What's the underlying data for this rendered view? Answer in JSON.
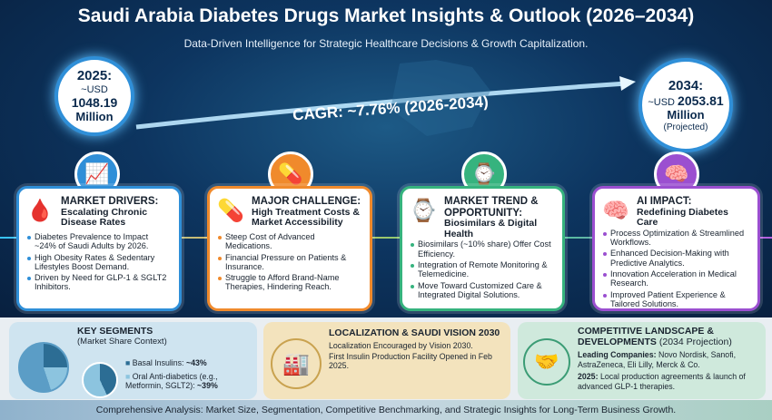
{
  "header": {
    "title": "Saudi Arabia Diabetes Drugs Market Insights & Outlook (2026–2034)",
    "subtitle": "Data-Driven Intelligence for Strategic Healthcare Decisions & Growth Capitalization."
  },
  "start": {
    "year": "2025:",
    "prefix": "~USD",
    "value": "1048.19",
    "unit": "Million"
  },
  "end": {
    "year": "2034:",
    "prefix": "~USD",
    "value": "2053.81",
    "unit": "Million",
    "note": "(Projected)"
  },
  "cagr": "CAGR: ~7.76% (2026-2034)",
  "cards": [
    {
      "title": "MARKET DRIVERS:",
      "subtitle": "Escalating Chronic Disease Rates",
      "color": "#2f8fd8",
      "icon": "glucose-meter-chart-icon",
      "bullets": [
        "Diabetes Prevalence to Impact ~24% of Saudi Adults by 2026.",
        "High Obesity Rates & Sedentary Lifestyles Boost Demand.",
        "Driven by Need for GLP-1 & SGLT2 Inhibitors."
      ]
    },
    {
      "title": "MAJOR CHALLENGE:",
      "subtitle": "High Treatment Costs & Market Accessibility",
      "color": "#f08a2c",
      "icon": "pill-bottle-icon",
      "bullets": [
        "Steep Cost of Advanced Medications.",
        "Financial Pressure on Patients & Insurance.",
        "Struggle to Afford Brand-Name Therapies, Hindering Reach."
      ]
    },
    {
      "title": "MARKET TREND & OPPORTUNITY:",
      "subtitle": "Biosimilars & Digital Health",
      "color": "#36b37e",
      "icon": "smartwatch-cloud-icon",
      "bullets": [
        "Biosimilars (~10% share) Offer Cost Efficiency.",
        "Integration of Remote Monitoring & Telemedicine.",
        "Move Toward Customized Care & Integrated Digital Solutions."
      ]
    },
    {
      "title": "AI IMPACT:",
      "subtitle": "Redefining Diabetes Care",
      "color": "#9b4fd0",
      "icon": "ai-chip-stethoscope-icon",
      "bullets": [
        "Process Optimization & Streamlined Workflows.",
        "Enhanced Decision-Making with Predictive Analytics.",
        "Innovation Acceleration in Medical Research.",
        "Improved Patient Experience & Tailored Solutions."
      ]
    }
  ],
  "segments": {
    "title": "KEY SEGMENTS",
    "subtitle": "(Market Share Context)",
    "items": [
      {
        "label": "Basal Insulins:",
        "value": "~43%",
        "color": "#2c6d94"
      },
      {
        "label": "Oral Anti-diabetics (e.g., Metformin, SGLT2):",
        "value": "~39%",
        "color": "#8cc4df"
      }
    ]
  },
  "localization": {
    "title": "LOCALIZATION & SAUDI VISION 2030",
    "lines": [
      "Localization Encouraged by Vision 2030.",
      "First Insulin Production Facility Opened in Feb 2025."
    ]
  },
  "competitive": {
    "title": "COMPETITIVE LANDSCAPE & DEVELOPMENTS",
    "title_note": "(2034 Projection)",
    "leading_label": "Leading Companies:",
    "leading": "Novo Nordisk, Sanofi, AstraZeneca, Eli Lilly, Merck & Co.",
    "dev_label": "2025:",
    "dev": "Local production agreements & launch of advanced GLP-1 therapies."
  },
  "footer": "Comprehensive Analysis: Market Size, Segmentation, Competitive Benchmarking, and Strategic Insights for Long-Term Business Growth."
}
